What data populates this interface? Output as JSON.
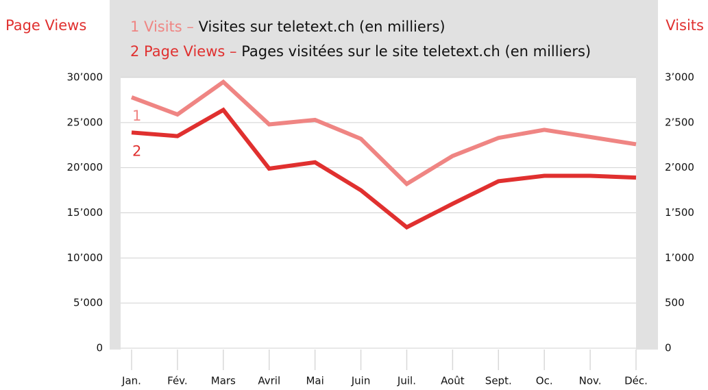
{
  "chart_data": {
    "type": "line",
    "y_label": "Page Views",
    "y2_label": "Visits",
    "categories": [
      "Jan.",
      "Fév.",
      "Mars",
      "Avril",
      "Mai",
      "Juin",
      "Juil.",
      "Août",
      "Sept.",
      "Oc.",
      "Nov.",
      "Déc."
    ],
    "series": [
      {
        "name": "1 Visits –",
        "description": "Visites sur teletext.ch (en milliers)",
        "marker": "1",
        "color": "#ef8583",
        "axis": "y2",
        "values": [
          2780,
          2590,
          2950,
          2480,
          2530,
          2320,
          1820,
          2130,
          2330,
          2420,
          2340,
          2260
        ]
      },
      {
        "name": "2 Page Views –",
        "description": "Pages visitées sur le site teletext.ch (en milliers)",
        "marker": "2",
        "color": "#e0302f",
        "axis": "y",
        "values": [
          23900,
          23500,
          26400,
          19900,
          20600,
          17500,
          13400,
          16000,
          18500,
          19100,
          19100,
          18900
        ]
      }
    ],
    "ylim": [
      0,
      30000
    ],
    "yticks": [
      0,
      {
        "value": 5000,
        "label": "5’000"
      },
      {
        "value": 10000,
        "label": "10’000"
      },
      {
        "value": 15000,
        "label": "15’000"
      },
      {
        "value": 20000,
        "label": "20’000"
      },
      {
        "value": 25000,
        "label": "25’000"
      },
      {
        "value": 30000,
        "label": "30’000"
      }
    ],
    "y2lim": [
      0,
      3000
    ],
    "y2ticks": [
      0,
      500,
      {
        "value": 1000,
        "label": "1’000"
      },
      {
        "value": 1500,
        "label": "1’500"
      },
      {
        "value": 2000,
        "label": "2’000"
      },
      {
        "value": 2500,
        "label": "2’500"
      },
      {
        "value": 3000,
        "label": "3’000"
      }
    ],
    "grid": true
  }
}
